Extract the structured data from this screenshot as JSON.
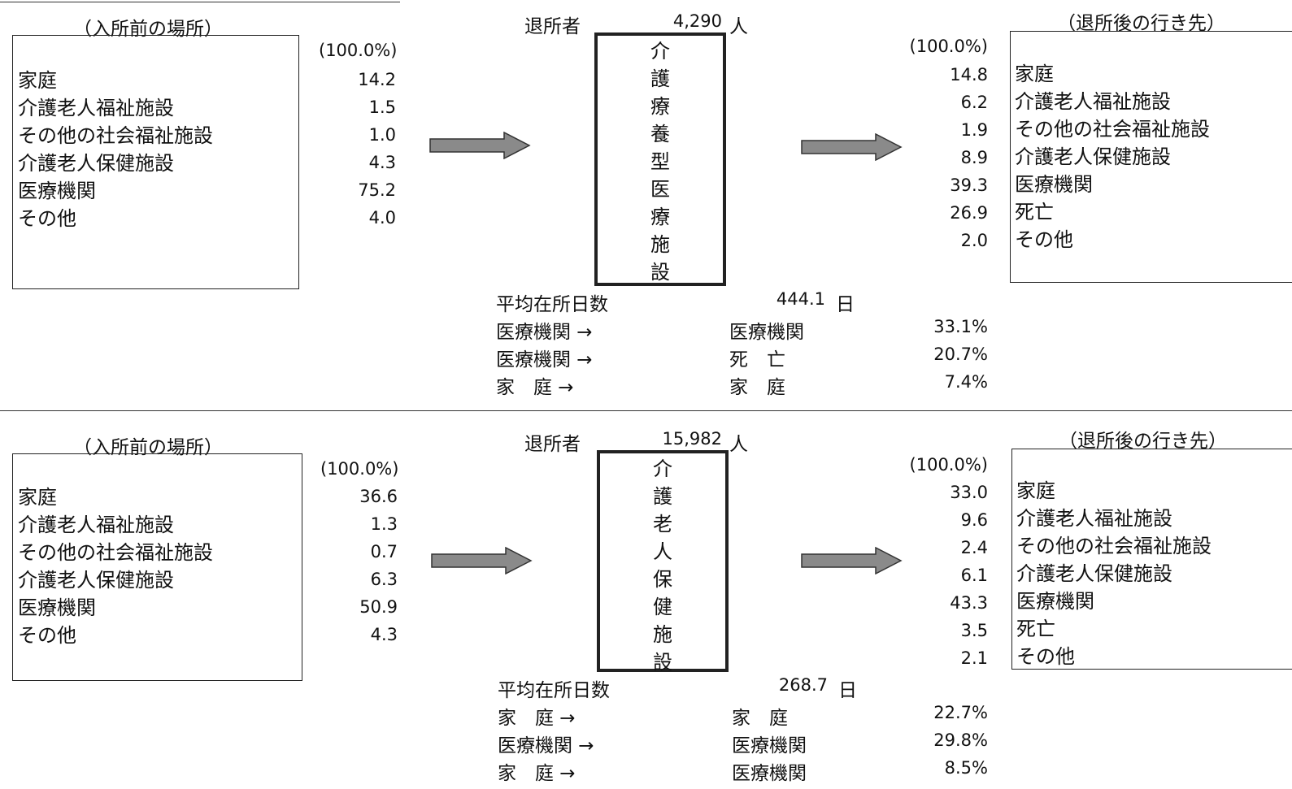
{
  "panels": [
    {
      "before_label": "（入所前の場所）",
      "after_label": "（退所後の行き先）",
      "discharge_label": "退所者",
      "discharge_count": "4,290",
      "discharge_unit": "人",
      "facility_chars": [
        "介",
        "護",
        "療",
        "養",
        "型",
        "医",
        "療",
        "施",
        "設"
      ],
      "before_total": "(100.0%)",
      "before": [
        {
          "label": "家庭",
          "value": "14.2"
        },
        {
          "label": "介護老人福祉施設",
          "value": "1.5"
        },
        {
          "label": "その他の社会福祉施設",
          "value": "1.0"
        },
        {
          "label": "介護老人保健施設",
          "value": "4.3"
        },
        {
          "label": "医療機関",
          "value": "75.2"
        },
        {
          "label": "その他",
          "value": "4.0"
        }
      ],
      "after_total": "(100.0%)",
      "after": [
        {
          "label": "家庭",
          "value": "14.8"
        },
        {
          "label": "介護老人福祉施設",
          "value": "6.2"
        },
        {
          "label": "その他の社会福祉施設",
          "value": "1.9"
        },
        {
          "label": "介護老人保健施設",
          "value": "8.9"
        },
        {
          "label": "医療機関",
          "value": "39.3"
        },
        {
          "label": "死亡",
          "value": "26.9"
        },
        {
          "label": "その他",
          "value": "2.0"
        }
      ],
      "avg_stay_label": "平均在所日数",
      "avg_stay_value": "444.1",
      "avg_stay_unit": "日",
      "flows": [
        {
          "from": "医療機関 →",
          "to": "医療機関",
          "pct": "33.1%"
        },
        {
          "from": "医療機関 →",
          "to": "死　亡",
          "pct": "20.7%"
        },
        {
          "from": "家　庭 →",
          "to": "家　庭",
          "pct": "7.4%"
        }
      ]
    },
    {
      "before_label": "（入所前の場所）",
      "after_label": "（退所後の行き先）",
      "discharge_label": "退所者",
      "discharge_count": "15,982",
      "discharge_unit": "人",
      "facility_chars": [
        "介",
        "護",
        "老",
        "人",
        "保",
        "健",
        "施",
        "設"
      ],
      "before_total": "(100.0%)",
      "before": [
        {
          "label": "家庭",
          "value": "36.6"
        },
        {
          "label": "介護老人福祉施設",
          "value": "1.3"
        },
        {
          "label": "その他の社会福祉施設",
          "value": "0.7"
        },
        {
          "label": "介護老人保健施設",
          "value": "6.3"
        },
        {
          "label": "医療機関",
          "value": "50.9"
        },
        {
          "label": "その他",
          "value": "4.3"
        }
      ],
      "after_total": "(100.0%)",
      "after": [
        {
          "label": "家庭",
          "value": "33.0"
        },
        {
          "label": "介護老人福祉施設",
          "value": "9.6"
        },
        {
          "label": "その他の社会福祉施設",
          "value": "2.4"
        },
        {
          "label": "介護老人保健施設",
          "value": "6.1"
        },
        {
          "label": "医療機関",
          "value": "43.3"
        },
        {
          "label": "死亡",
          "value": "3.5"
        },
        {
          "label": "その他",
          "value": "2.1"
        }
      ],
      "avg_stay_label": "平均在所日数",
      "avg_stay_value": "268.7",
      "avg_stay_unit": "日",
      "flows": [
        {
          "from": "家　庭 →",
          "to": "家　庭",
          "pct": "22.7%"
        },
        {
          "from": "医療機関 →",
          "to": "医療機関",
          "pct": "29.8%"
        },
        {
          "from": "家　庭 →",
          "to": "医療機関",
          "pct": "8.5%"
        }
      ]
    }
  ]
}
